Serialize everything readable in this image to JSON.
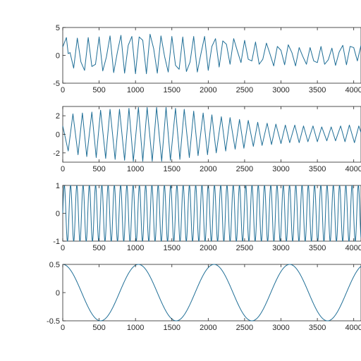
{
  "chart_data": [
    {
      "type": "line",
      "title": "",
      "xlabel": "",
      "ylabel": "",
      "xlim": [
        0,
        4100
      ],
      "ylim": [
        -5,
        5
      ],
      "xticks": [
        0,
        500,
        1000,
        1500,
        2000,
        2500,
        3000,
        3500,
        4000
      ],
      "xtick_labels": [
        "0",
        "500",
        "1000",
        "1500",
        "2000",
        "2500",
        "3000",
        "3500",
        "4000"
      ],
      "yticks": [
        5,
        0,
        -5
      ],
      "ytick_labels": [
        "5",
        "0",
        "-5"
      ],
      "grid": false,
      "line_color": "#1f6e96",
      "series": [
        {
          "x": [
            0,
            50,
            75,
            100,
            150,
            200,
            250,
            300,
            350,
            400,
            450,
            500,
            550,
            600,
            650,
            700,
            750,
            800,
            850,
            900,
            950,
            1000,
            1050,
            1100,
            1150,
            1200,
            1250,
            1300,
            1350,
            1400,
            1450,
            1500,
            1550,
            1600,
            1650,
            1700,
            1750,
            1800,
            1850,
            1900,
            1950,
            2000,
            2050,
            2100,
            2150,
            2200,
            2250,
            2300,
            2350,
            2400,
            2450,
            2500,
            2550,
            2600,
            2650,
            2700,
            2750,
            2800,
            2850,
            2900,
            2950,
            3000,
            3050,
            3100,
            3150,
            3200,
            3250,
            3300,
            3350,
            3400,
            3450,
            3500,
            3550,
            3600,
            3650,
            3700,
            3750,
            3800,
            3850,
            3900,
            3950,
            4000,
            4050,
            4100
          ],
          "y": [
            1.5,
            3.2,
            0.3,
            0.5,
            -2.3,
            3.1,
            -1.2,
            -2.7,
            3.2,
            -2.0,
            -1.6,
            3.3,
            -2.8,
            -0.3,
            3.5,
            -3.1,
            0.5,
            3.6,
            -3.2,
            1.8,
            3.4,
            -3.3,
            3.3,
            2.7,
            -3.3,
            3.8,
            1.2,
            -3.2,
            3.5,
            -0.2,
            -3.0,
            3.4,
            -1.8,
            -2.5,
            3.3,
            -2.9,
            -1.2,
            3.4,
            -3.0,
            0.3,
            3.4,
            -2.7,
            1.6,
            3.0,
            -2.1,
            2.6,
            2.0,
            -1.6,
            3.0,
            0.8,
            -1.3,
            2.7,
            -0.7,
            -1.0,
            2.4,
            -1.6,
            -0.7,
            2.2,
            0.2,
            -1.9,
            1.6,
            0.9,
            -1.7,
            1.9,
            0.5,
            -1.9,
            1.4,
            -0.2,
            -1.6,
            1.4,
            -1.0,
            -1.3,
            1.6,
            -1.6,
            -0.8,
            1.3,
            -1.8,
            0.6,
            1.8,
            -1.7,
            1.6,
            1.4,
            -1.0,
            1.8
          ]
        }
      ]
    },
    {
      "type": "line",
      "title": "",
      "xlabel": "",
      "ylabel": "",
      "xlim": [
        0,
        4100
      ],
      "ylim": [
        -3,
        3
      ],
      "xticks": [
        0,
        500,
        1000,
        1500,
        2000,
        2500,
        3000,
        3500,
        4000
      ],
      "xtick_labels": [
        "0",
        "500",
        "1000",
        "1500",
        "2000",
        "2500",
        "3000",
        "3500",
        "4000"
      ],
      "yticks": [
        2,
        0,
        -2
      ],
      "ytick_labels": [
        "2",
        "0",
        "-2"
      ],
      "grid": false,
      "line_color": "#1f6e96",
      "series": [
        {
          "x": [
            0,
            75,
            140,
            210,
            270,
            330,
            400,
            460,
            520,
            590,
            650,
            720,
            780,
            850,
            910,
            970,
            1040,
            1100,
            1160,
            1230,
            1290,
            1360,
            1420,
            1480,
            1550,
            1610,
            1670,
            1740,
            1800,
            1860,
            1930,
            1990,
            2050,
            2110,
            2180,
            2240,
            2300,
            2370,
            2430,
            2490,
            2550,
            2620,
            2680,
            2740,
            2810,
            2870,
            2930,
            3000,
            3060,
            3120,
            3190,
            3250,
            3310,
            3370,
            3440,
            3500,
            3560,
            3630,
            3690,
            3750,
            3820,
            3880,
            3940,
            4010,
            4070,
            4100
          ],
          "y": [
            0.9,
            -1.8,
            2.2,
            -2.2,
            2.3,
            -2.4,
            2.4,
            -2.5,
            2.6,
            -2.6,
            2.7,
            -2.7,
            2.7,
            -2.8,
            2.8,
            -2.9,
            2.9,
            -2.9,
            2.9,
            -2.9,
            2.9,
            -2.9,
            2.9,
            -2.8,
            2.8,
            -2.7,
            2.7,
            -2.5,
            2.5,
            -2.3,
            2.3,
            -2.2,
            2.1,
            -2.0,
            1.9,
            -1.8,
            1.8,
            -1.6,
            1.6,
            -1.5,
            1.5,
            -1.3,
            1.3,
            -1.2,
            1.2,
            -1.1,
            1.1,
            -1.0,
            1.0,
            -0.9,
            1.0,
            -0.9,
            0.9,
            -0.8,
            0.9,
            -0.8,
            0.8,
            -0.7,
            0.8,
            -0.7,
            0.9,
            -0.8,
            1.0,
            -0.9,
            0.9,
            0.2
          ]
        }
      ]
    },
    {
      "type": "line",
      "title": "",
      "xlabel": "",
      "ylabel": "",
      "xlim": [
        0,
        4100
      ],
      "ylim": [
        -1,
        1
      ],
      "xticks": [
        0,
        500,
        1000,
        1500,
        2000,
        2500,
        3000,
        3500,
        4000
      ],
      "xtick_labels": [
        "0",
        "500",
        "1000",
        "1500",
        "2000",
        "2500",
        "3000",
        "3500",
        "4000"
      ],
      "yticks": [
        1,
        0,
        -1
      ],
      "ytick_labels": [
        "1",
        "0",
        "-1"
      ],
      "grid": false,
      "line_color": "#1f6e96",
      "series": [
        {
          "function": "sine",
          "amplitude": 1,
          "period": 86,
          "phase": 0
        }
      ]
    },
    {
      "type": "line",
      "title": "",
      "xlabel": "",
      "ylabel": "",
      "xlim": [
        0,
        4100
      ],
      "ylim": [
        -0.5,
        0.5
      ],
      "xticks": [
        0,
        500,
        1000,
        1500,
        2000,
        2500,
        3000,
        3500,
        4000
      ],
      "xtick_labels": [
        "0",
        "500",
        "1000",
        "1500",
        "2000",
        "2500",
        "3000",
        "3500",
        "4000"
      ],
      "yticks": [
        0.5,
        0,
        -0.5
      ],
      "ytick_labels": [
        "0.5",
        "0",
        "-0.5"
      ],
      "grid": false,
      "line_color": "#1f6e96",
      "series": [
        {
          "function": "cosine",
          "amplitude": 0.5,
          "period": 1040,
          "phase": 0
        }
      ]
    }
  ]
}
